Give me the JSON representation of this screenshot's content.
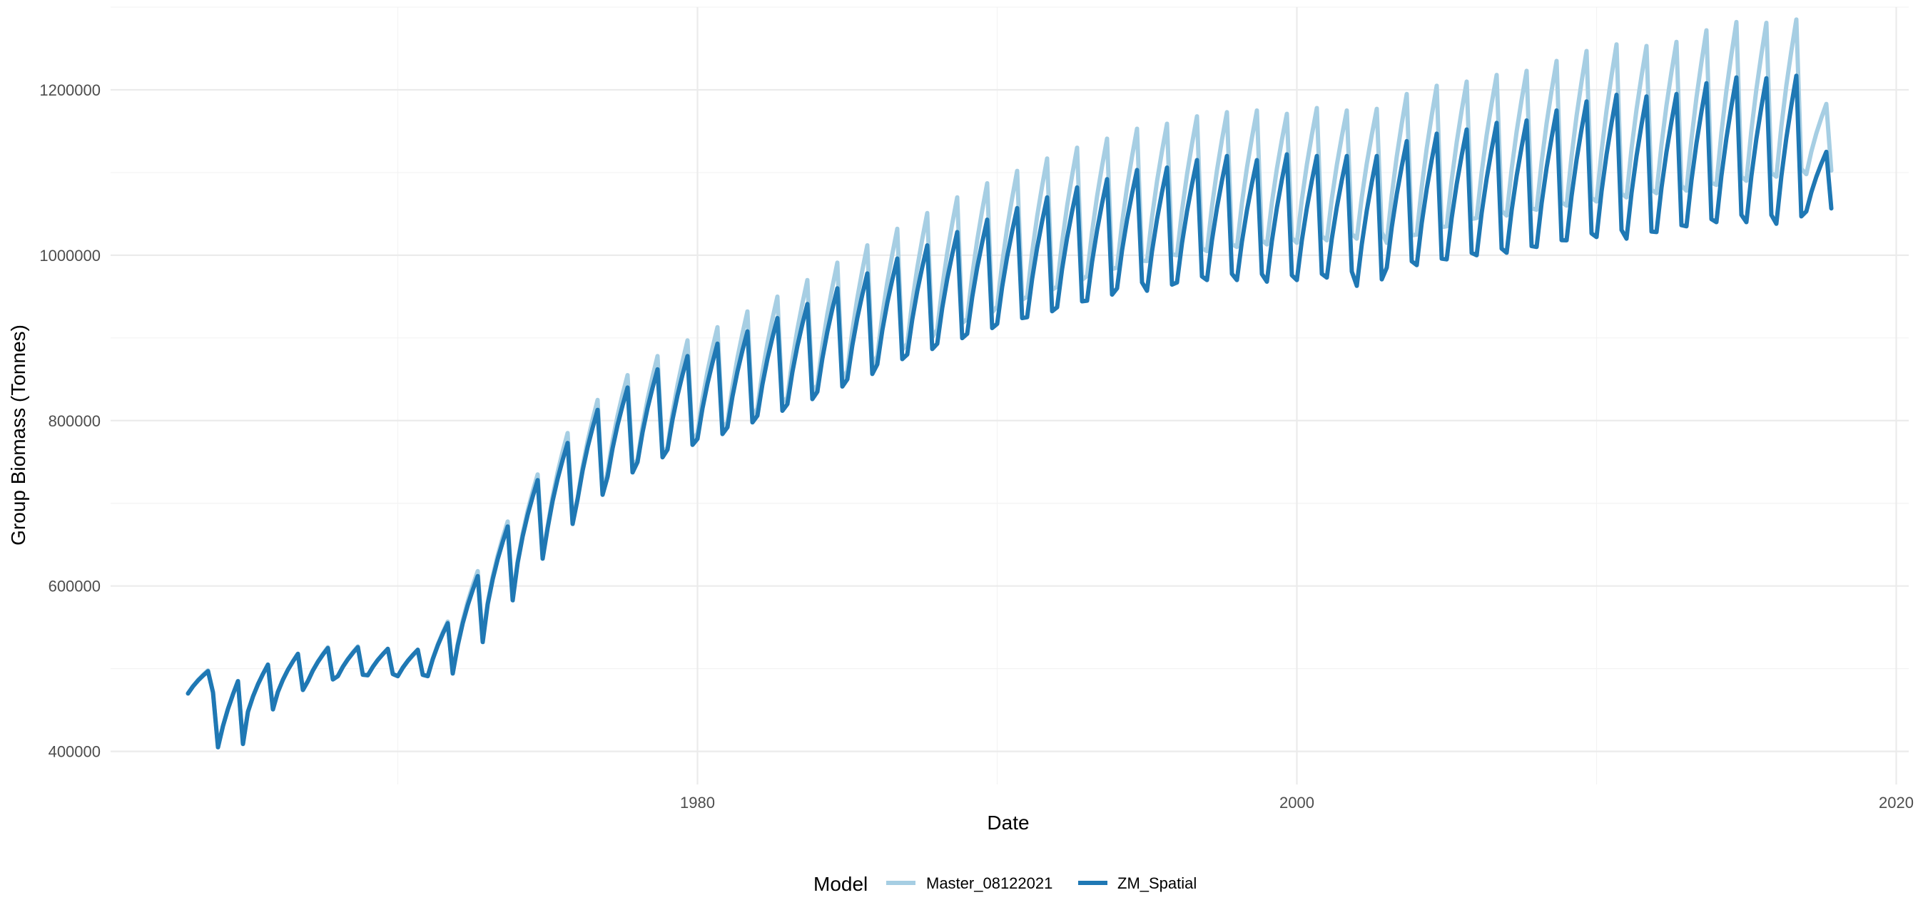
{
  "chart_data": {
    "type": "line",
    "title": "",
    "xlabel": "Date",
    "ylabel": "Group Biomass (Tonnes)",
    "x_range": [
      "1960-06-01",
      "2020-06-01"
    ],
    "ylim": [
      360000,
      1300000
    ],
    "y_ticks": [
      400000,
      600000,
      800000,
      1000000,
      1200000
    ],
    "y_tick_labels": [
      "400000",
      "600000",
      "800000",
      "1000000",
      "1200000"
    ],
    "x_ticks": [
      "1980-01-01",
      "2000-01-01",
      "2020-01-01"
    ],
    "x_tick_labels": [
      "1980",
      "2000",
      "2020"
    ],
    "x_minor_ticks": [
      "1970-01-01",
      "1990-01-01",
      "2010-01-01"
    ],
    "grid": true,
    "legend": {
      "title": "Model",
      "position": "bottom",
      "entries": [
        "Master_08122021",
        "ZM_Spatial"
      ]
    },
    "series": [
      {
        "name": "Master_08122021",
        "color": "#a6cee3",
        "seasonal_pattern": [
          0.0,
          0.32,
          0.58,
          0.8,
          1.0,
          0.05
        ],
        "years": [
          1963,
          1964,
          1965,
          1966,
          1967,
          1968,
          1969,
          1970,
          1971,
          1972,
          1973,
          1974,
          1975,
          1976,
          1977,
          1978,
          1979,
          1980,
          1981,
          1982,
          1983,
          1984,
          1985,
          1986,
          1987,
          1988,
          1989,
          1990,
          1991,
          1992,
          1993,
          1994,
          1995,
          1996,
          1997,
          1998,
          1999,
          2000,
          2001,
          2002,
          2003,
          2004,
          2005,
          2006,
          2007,
          2008,
          2009,
          2010,
          2011,
          2012,
          2013,
          2014,
          2015,
          2016,
          2017
        ],
        "year_min": [
          470000,
          405000,
          448000,
          472000,
          485000,
          491000,
          492000,
          491000,
          491000,
          530000,
          580000,
          630000,
          672000,
          706000,
          738000,
          753000,
          768000,
          785000,
          798000,
          815000,
          828000,
          843000,
          860000,
          878000,
          893000,
          910000,
          923000,
          938000,
          950000,
          962000,
          975000,
          985000,
          993000,
          1000000,
          1005000,
          1010000,
          1013000,
          1015000,
          1018000,
          1020000,
          1015000,
          1025000,
          1035000,
          1045000,
          1048000,
          1055000,
          1060000,
          1065000,
          1070000,
          1075000,
          1078000,
          1085000,
          1090000,
          1095000,
          1098000
        ],
        "year_max": [
          498000,
          485000,
          505000,
          518000,
          526000,
          527000,
          524000,
          522000,
          557000,
          618000,
          678000,
          735000,
          785000,
          825000,
          855000,
          878000,
          897000,
          913000,
          932000,
          950000,
          970000,
          991000,
          1012000,
          1032000,
          1051000,
          1070000,
          1087000,
          1102000,
          1117000,
          1130000,
          1141000,
          1153000,
          1159000,
          1168000,
          1173000,
          1175000,
          1171000,
          1178000,
          1175000,
          1177000,
          1195000,
          1205000,
          1210000,
          1218000,
          1223000,
          1235000,
          1247000,
          1255000,
          1253000,
          1258000,
          1272000,
          1282000,
          1281000,
          1285000,
          1183000
        ]
      },
      {
        "name": "ZM_Spatial",
        "color": "#1f78b4",
        "seasonal_pattern": [
          0.0,
          0.32,
          0.58,
          0.8,
          1.0,
          0.05
        ],
        "years": [
          1963,
          1964,
          1965,
          1966,
          1967,
          1968,
          1969,
          1970,
          1971,
          1972,
          1973,
          1974,
          1975,
          1976,
          1977,
          1978,
          1979,
          1980,
          1981,
          1982,
          1983,
          1984,
          1985,
          1986,
          1987,
          1988,
          1989,
          1990,
          1991,
          1992,
          1993,
          1994,
          1995,
          1996,
          1997,
          1998,
          1999,
          2000,
          2001,
          2002,
          2003,
          2004,
          2005,
          2006,
          2007,
          2008,
          2009,
          2010,
          2011,
          2012,
          2013,
          2014,
          2015,
          2016,
          2017
        ],
        "year_min": [
          470000,
          405000,
          448000,
          472000,
          485000,
          491000,
          492000,
          491000,
          491000,
          528000,
          578000,
          628000,
          670000,
          705000,
          732000,
          750000,
          765000,
          778000,
          792000,
          806000,
          820000,
          835000,
          850000,
          868000,
          880000,
          893000,
          905000,
          917000,
          925000,
          937000,
          945000,
          960000,
          957000,
          967000,
          970000,
          970000,
          968000,
          970000,
          973000,
          963000,
          985000,
          988000,
          995000,
          1000000,
          1003000,
          1010000,
          1018000,
          1022000,
          1020000,
          1028000,
          1035000,
          1040000,
          1040000,
          1038000,
          1053000
        ],
        "year_max": [
          497000,
          485000,
          505000,
          518000,
          525000,
          526000,
          524000,
          523000,
          555000,
          612000,
          672000,
          728000,
          773000,
          813000,
          840000,
          862000,
          878000,
          893000,
          908000,
          924000,
          941000,
          960000,
          978000,
          996000,
          1012000,
          1028000,
          1043000,
          1057000,
          1070000,
          1082000,
          1092000,
          1103000,
          1106000,
          1115000,
          1120000,
          1115000,
          1122000,
          1120000,
          1120000,
          1120000,
          1138000,
          1147000,
          1152000,
          1160000,
          1163000,
          1175000,
          1186000,
          1194000,
          1192000,
          1195000,
          1208000,
          1215000,
          1214000,
          1217000,
          1125000
        ]
      }
    ]
  }
}
